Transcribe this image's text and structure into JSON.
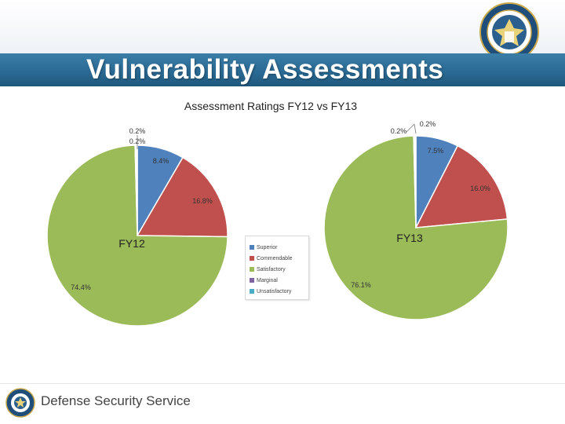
{
  "slide": {
    "title": "Vulnerability Assessments",
    "footer": "Defense Security Service"
  },
  "colors": {
    "title_bar": "#2a6a94",
    "superior": "#4f81bd",
    "commendable": "#c0504d",
    "satisfactory": "#9bbb59",
    "marginal": "#8064a2",
    "unsatisfactory": "#4bacc6"
  },
  "icons": {
    "seal": "dss-seal-icon",
    "footer_logo": "dss-logo-icon"
  },
  "chart_data": {
    "type": "pie",
    "title": "Assessment Ratings FY12 vs FY13",
    "legend": {
      "placement": "center",
      "entries": [
        "Superior",
        "Commendable",
        "Satisfactory",
        "Marginal",
        "Unsatisfactory"
      ]
    },
    "pies": [
      {
        "name": "FY12",
        "slices": [
          {
            "category": "Superior",
            "value": 8.4,
            "label": "8.4%"
          },
          {
            "category": "Commendable",
            "value": 16.8,
            "label": "16.8%"
          },
          {
            "category": "Satisfactory",
            "value": 74.4,
            "label": "74.4%"
          },
          {
            "category": "Marginal",
            "value": 0.2,
            "label": "0.2%"
          },
          {
            "category": "Unsatisfactory",
            "value": 0.2,
            "label": "0.2%"
          }
        ]
      },
      {
        "name": "FY13",
        "slices": [
          {
            "category": "Superior",
            "value": 7.5,
            "label": "7.5%"
          },
          {
            "category": "Commendable",
            "value": 16.0,
            "label": "16.0%"
          },
          {
            "category": "Satisfactory",
            "value": 76.1,
            "label": "76.1%"
          },
          {
            "category": "Marginal",
            "value": 0.2,
            "label": "0.2%"
          },
          {
            "category": "Unsatisfactory",
            "value": 0.2,
            "label": "0.2%"
          }
        ]
      }
    ]
  }
}
